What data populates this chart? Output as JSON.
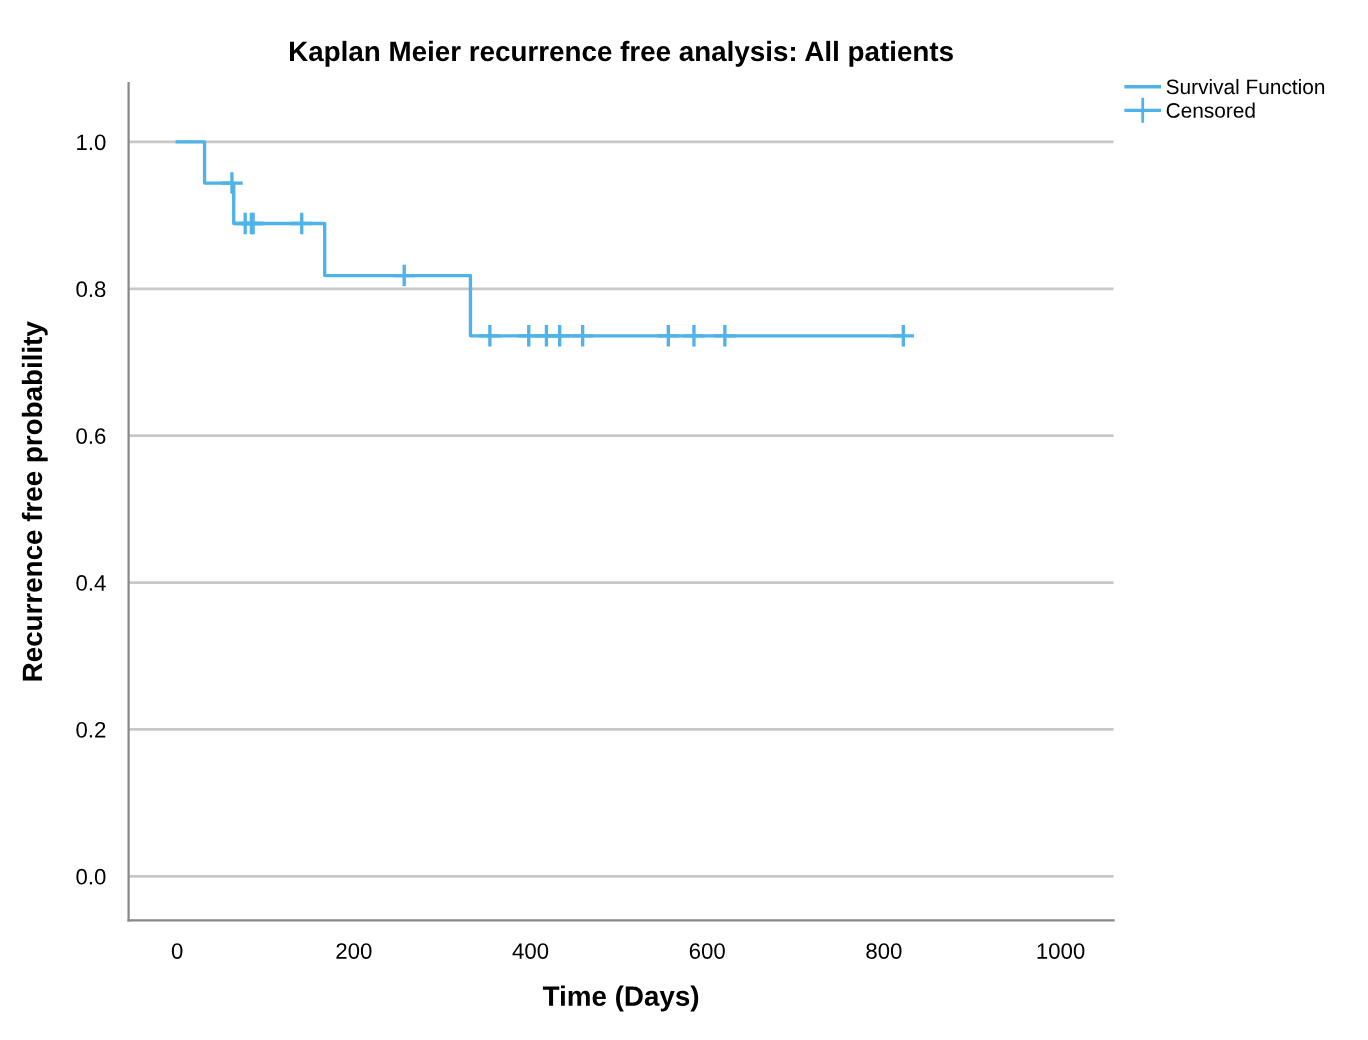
{
  "chart_data": {
    "type": "step",
    "title": "Kaplan Meier recurrence free analysis: All patients",
    "xlabel": "Time (Days)",
    "ylabel": "Recurrence free probability",
    "series": [
      {
        "name": "Survival Function",
        "color": "#4fb3e8",
        "x": [
          0,
          31,
          64,
          167,
          332,
          822
        ],
        "values": [
          1.0,
          0.944,
          0.889,
          0.818,
          0.736,
          0.736
        ]
      },
      {
        "name": "Censored",
        "type": "scatter",
        "marker": "cross",
        "color": "#4fb3e8",
        "x": [
          62,
          77,
          84,
          86,
          141,
          257,
          354,
          398,
          418,
          433,
          459,
          556,
          585,
          620,
          822
        ],
        "values": [
          0.944,
          0.889,
          0.889,
          0.889,
          0.889,
          0.818,
          0.736,
          0.736,
          0.736,
          0.736,
          0.736,
          0.736,
          0.736,
          0.736,
          0.736
        ]
      }
    ],
    "xlim": [
      -55,
      1060
    ],
    "xticks": [
      0,
      200,
      400,
      600,
      800,
      1000
    ],
    "ylim": [
      -0.06,
      1.08
    ],
    "yticks": [
      {
        "value": 0,
        "label": "0.0"
      },
      {
        "value": 0.2,
        "label": "0.2"
      },
      {
        "value": 0.4,
        "label": "0.4"
      },
      {
        "value": 0.6,
        "label": "0.6"
      },
      {
        "value": 0.8,
        "label": "0.8"
      },
      {
        "value": 1.0,
        "label": "1.0"
      }
    ],
    "grid": "y",
    "legend": "top right"
  }
}
